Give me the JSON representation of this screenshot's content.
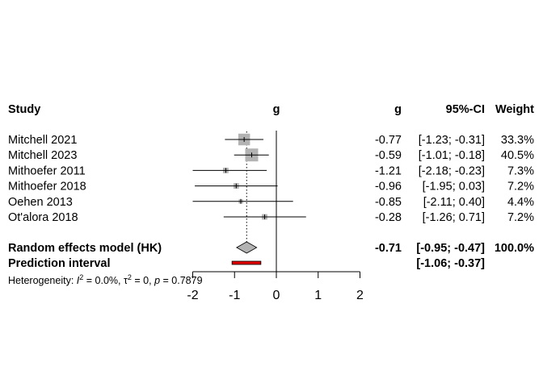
{
  "chart_data": {
    "type": "forest",
    "headers": {
      "study": "Study",
      "plot_g": "g",
      "g": "g",
      "ci": "95%-CI",
      "weight": "Weight"
    },
    "studies": [
      {
        "name": "Mitchell 2021",
        "g": -0.77,
        "lower": -1.23,
        "upper": -0.31,
        "weight": 33.3,
        "g_label": "-0.77",
        "ci_label": "[-1.23; -0.31]",
        "weight_label": "33.3%"
      },
      {
        "name": "Mitchell 2023",
        "g": -0.59,
        "lower": -1.01,
        "upper": -0.18,
        "weight": 40.5,
        "g_label": "-0.59",
        "ci_label": "[-1.01; -0.18]",
        "weight_label": "40.5%"
      },
      {
        "name": "Mithoefer 2011",
        "g": -1.21,
        "lower": -2.18,
        "upper": -0.23,
        "weight": 7.3,
        "g_label": "-1.21",
        "ci_label": "[-2.18; -0.23]",
        "weight_label": "7.3%"
      },
      {
        "name": "Mithoefer 2018",
        "g": -0.96,
        "lower": -1.95,
        "upper": 0.03,
        "weight": 7.2,
        "g_label": "-0.96",
        "ci_label": "[-1.95;  0.03]",
        "weight_label": "7.2%"
      },
      {
        "name": "Oehen 2013",
        "g": -0.85,
        "lower": -2.11,
        "upper": 0.4,
        "weight": 4.4,
        "g_label": "-0.85",
        "ci_label": "[-2.11;  0.40]",
        "weight_label": "4.4%"
      },
      {
        "name": "Ot'alora 2018",
        "g": -0.28,
        "lower": -1.26,
        "upper": 0.71,
        "weight": 7.2,
        "g_label": "-0.28",
        "ci_label": "[-1.26;  0.71]",
        "weight_label": "7.2%"
      }
    ],
    "pooled": {
      "name": "Random effects model (HK)",
      "g": -0.71,
      "lower": -0.95,
      "upper": -0.47,
      "g_label": "-0.71",
      "ci_label": "[-0.95; -0.47]",
      "weight_label": "100.0%"
    },
    "prediction": {
      "name": "Prediction interval",
      "lower": -1.06,
      "upper": -0.37,
      "ci_label": "[-1.06; -0.37]"
    },
    "heterogeneity": {
      "label": "Heterogeneity: ",
      "I2": "0.0%",
      "tau2": "0",
      "p": "0.7879"
    },
    "xlim": [
      -2,
      2
    ],
    "xticks": [
      -2,
      -1,
      0,
      1,
      2
    ],
    "xtick_labels": [
      "-2",
      "-1",
      "0",
      "1",
      "2"
    ],
    "colors": {
      "square": "#b3b3b3",
      "diamond": "#b3b3b3",
      "prediction": "#e00000"
    }
  }
}
